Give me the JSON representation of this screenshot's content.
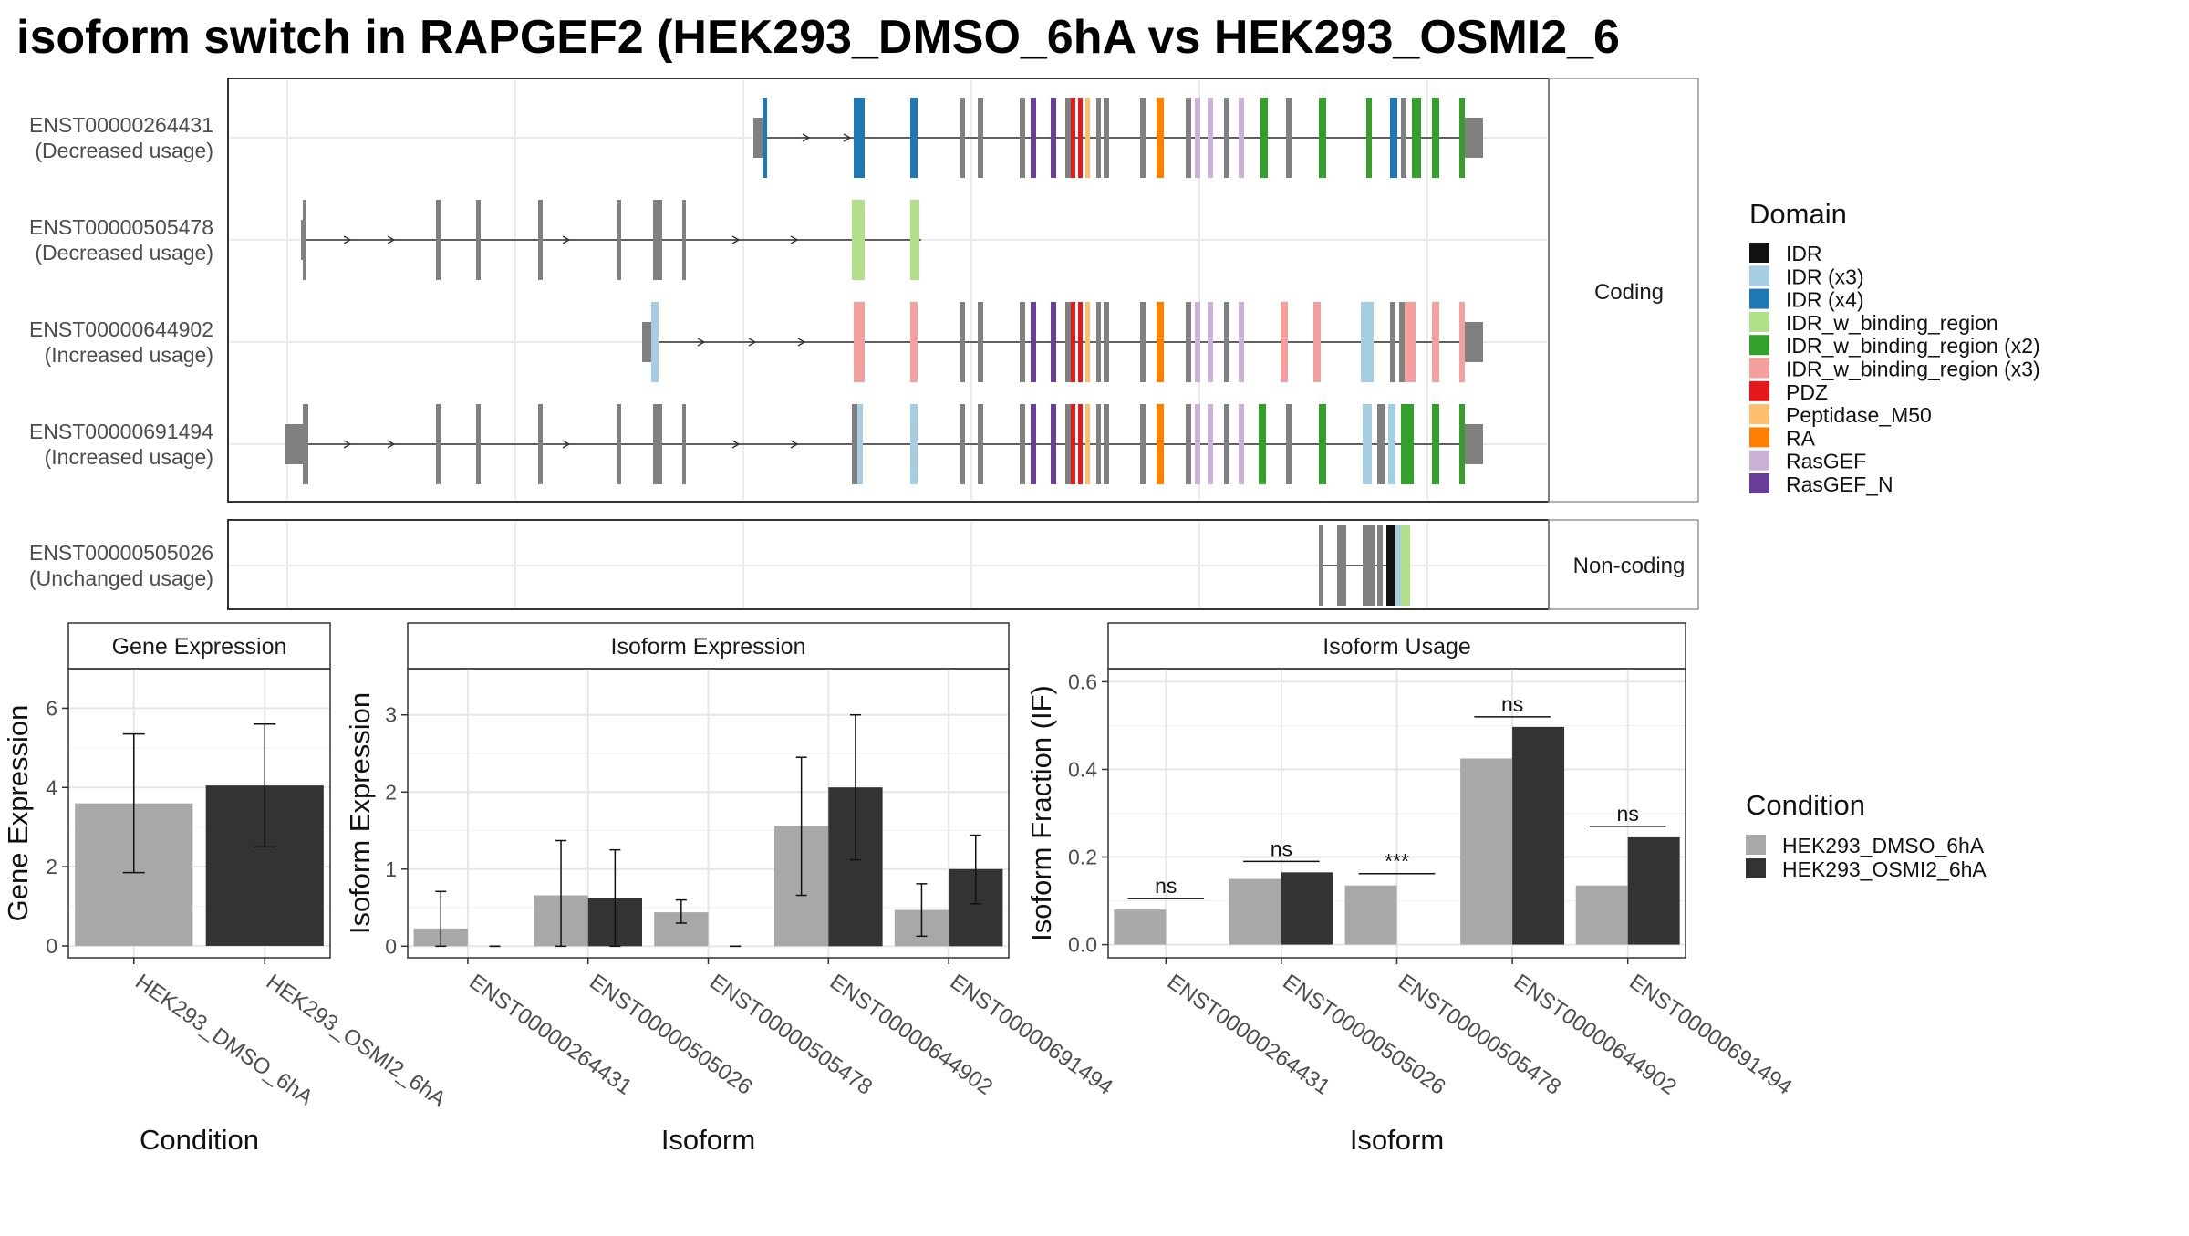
{
  "title": "isoform switch in RAPGEF2 (HEK293_DMSO_6hA vs HEK293_OSMI2_6",
  "domain_legend": {
    "title": "Domain",
    "items": [
      {
        "label": "IDR",
        "color": "#111111"
      },
      {
        "label": "IDR (x3)",
        "color": "#a6cee3"
      },
      {
        "label": "IDR (x4)",
        "color": "#1f78b4"
      },
      {
        "label": "IDR_w_binding_region",
        "color": "#b2df8a"
      },
      {
        "label": "IDR_w_binding_region (x2)",
        "color": "#33a02c"
      },
      {
        "label": "IDR_w_binding_region (x3)",
        "color": "#f4a09e"
      },
      {
        "label": "PDZ",
        "color": "#e31a1c"
      },
      {
        "label": "Peptidase_M50",
        "color": "#fdbf6f"
      },
      {
        "label": "RA",
        "color": "#ff7f00"
      },
      {
        "label": "RasGEF",
        "color": "#cab2d6"
      },
      {
        "label": "RasGEF_N",
        "color": "#6a3d9a"
      }
    ]
  },
  "condition_legend": {
    "title": "Condition",
    "items": [
      {
        "label": "HEK293_DMSO_6hA",
        "color": "#a8a8a8"
      },
      {
        "label": "HEK293_OSMI2_6hA",
        "color": "#333333"
      }
    ]
  },
  "isoform_panel": {
    "coding_label": "Coding",
    "noncoding_label": "Non-coding",
    "transcripts": [
      {
        "id": "ENST00000264431",
        "usage": "(Decreased usage)",
        "group": "coding"
      },
      {
        "id": "ENST00000505478",
        "usage": "(Decreased usage)",
        "group": "coding"
      },
      {
        "id": "ENST00000644902",
        "usage": "(Increased usage)",
        "group": "coding"
      },
      {
        "id": "ENST00000691494",
        "usage": "(Increased usage)",
        "group": "coding"
      },
      {
        "id": "ENST00000505026",
        "usage": "(Unchanged usage)",
        "group": "noncoding"
      }
    ]
  },
  "chart_data": [
    {
      "type": "bar",
      "title": "Gene Expression",
      "xlabel": "Condition",
      "ylabel": "Gene Expression",
      "categories": [
        "HEK293_DMSO_6hA",
        "HEK293_OSMI2_6hA"
      ],
      "values": [
        3.6,
        4.05
      ],
      "err_low": [
        1.85,
        2.5
      ],
      "err_high": [
        5.35,
        5.6
      ],
      "ylim": [
        -0.3,
        7.0
      ],
      "yticks": [
        0,
        2,
        4,
        6
      ],
      "grid": true
    },
    {
      "type": "bar",
      "title": "Isoform Expression",
      "xlabel": "Isoform",
      "ylabel": "Isoform Expression",
      "categories": [
        "ENST00000264431",
        "ENST00000505026",
        "ENST00000505478",
        "ENST00000644902",
        "ENST00000691494"
      ],
      "series": [
        {
          "name": "HEK293_DMSO_6hA",
          "values": [
            0.23,
            0.66,
            0.44,
            1.56,
            0.47
          ],
          "err_low": [
            0.0,
            0.0,
            0.3,
            0.66,
            0.13
          ],
          "err_high": [
            0.71,
            1.37,
            0.6,
            2.45,
            0.81
          ]
        },
        {
          "name": "HEK293_OSMI2_6hA",
          "values": [
            0.0,
            0.62,
            0.0,
            2.06,
            1.0
          ],
          "err_low": [
            0.0,
            0.0,
            0.0,
            1.12,
            0.55
          ],
          "err_high": [
            0.0,
            1.25,
            0.0,
            3.0,
            1.44
          ]
        }
      ],
      "ylim": [
        -0.15,
        3.6
      ],
      "yticks": [
        0,
        1,
        2,
        3
      ],
      "grid": true
    },
    {
      "type": "bar",
      "title": "Isoform Usage",
      "xlabel": "Isoform",
      "ylabel": "Isoform Fraction (IF)",
      "categories": [
        "ENST00000264431",
        "ENST00000505026",
        "ENST00000505478",
        "ENST00000644902",
        "ENST00000691494"
      ],
      "series": [
        {
          "name": "HEK293_DMSO_6hA",
          "values": [
            0.08,
            0.15,
            0.135,
            0.425,
            0.135
          ]
        },
        {
          "name": "HEK293_OSMI2_6hA",
          "values": [
            0.0,
            0.165,
            0.0,
            0.497,
            0.245
          ]
        }
      ],
      "significance": [
        "ns",
        "ns",
        "***",
        "ns",
        "ns"
      ],
      "sig_y": [
        0.105,
        0.19,
        0.162,
        0.52,
        0.27
      ],
      "ylim": [
        -0.03,
        0.63
      ],
      "yticks": [
        "0.0",
        "0.2",
        "0.4",
        "0.6"
      ],
      "grid": true
    }
  ]
}
